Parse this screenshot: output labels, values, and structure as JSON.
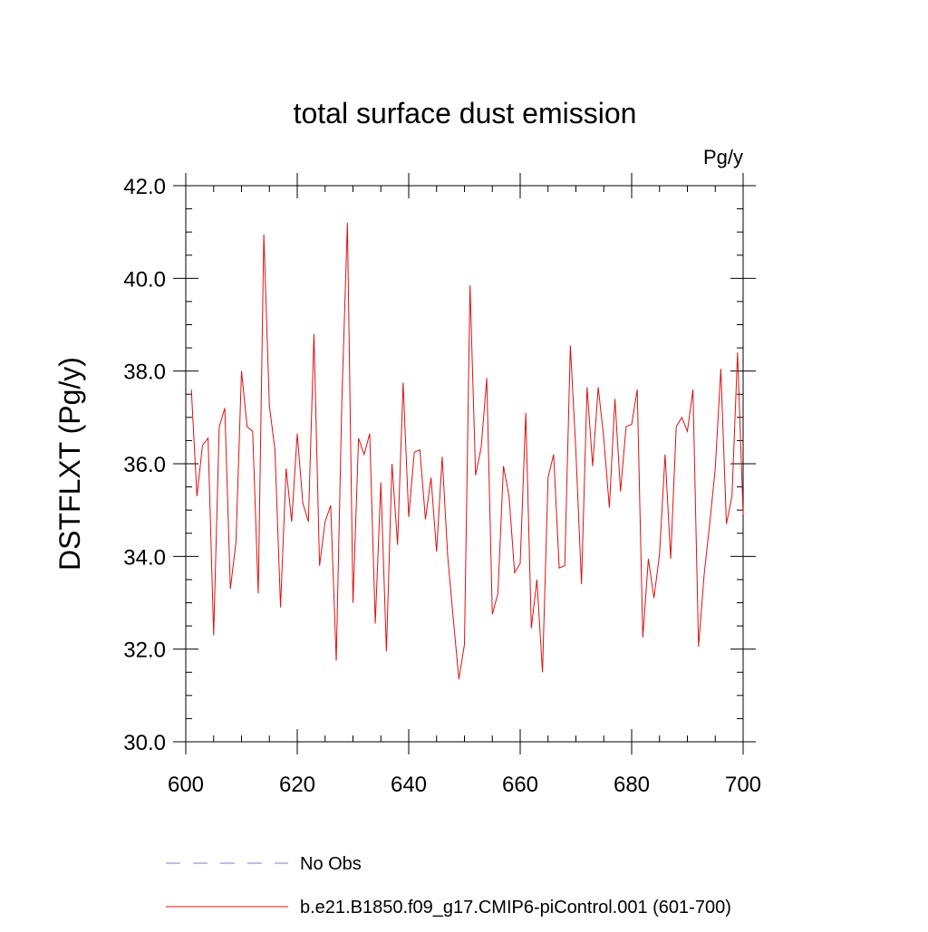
{
  "chart_data": {
    "type": "line",
    "title": "total surface dust emission",
    "units": "Pg/y",
    "ylabel": "DSTFLXT  (Pg/y)",
    "xlabel": "",
    "xlim": [
      600,
      700
    ],
    "ylim": [
      30,
      42
    ],
    "xticks": [
      600,
      620,
      640,
      660,
      680,
      700
    ],
    "xtick_labels": [
      "600",
      "620",
      "640",
      "660",
      "680",
      "700"
    ],
    "yticks": [
      30,
      32,
      34,
      36,
      38,
      40,
      42
    ],
    "ytick_labels": [
      "30.0",
      "32.0",
      "34.0",
      "36.0",
      "38.0",
      "40.0",
      "42.0"
    ],
    "grid": false,
    "legend_position": "bottom",
    "legend": [
      {
        "label": "No Obs",
        "color": "#8878c0",
        "style": "dashed"
      },
      {
        "label": "b.e21.B1850.f09_g17.CMIP6-piControl.001 (601-700)",
        "color": "#e01010",
        "style": "solid"
      }
    ],
    "series": [
      {
        "name": "b.e21.B1850.f09_g17.CMIP6-piControl.001 (601-700)",
        "color": "#e01010",
        "x": [
          601,
          602,
          603,
          604,
          605,
          606,
          607,
          608,
          609,
          610,
          611,
          612,
          613,
          614,
          615,
          616,
          617,
          618,
          619,
          620,
          621,
          622,
          623,
          624,
          625,
          626,
          627,
          628,
          629,
          630,
          631,
          632,
          633,
          634,
          635,
          636,
          637,
          638,
          639,
          640,
          641,
          642,
          643,
          644,
          645,
          646,
          647,
          648,
          649,
          650,
          651,
          652,
          653,
          654,
          655,
          656,
          657,
          658,
          659,
          660,
          661,
          662,
          663,
          664,
          665,
          666,
          667,
          668,
          669,
          670,
          671,
          672,
          673,
          674,
          675,
          676,
          677,
          678,
          679,
          680,
          681,
          682,
          683,
          684,
          685,
          686,
          687,
          688,
          689,
          690,
          691,
          692,
          693,
          694,
          695,
          696,
          697,
          698,
          699,
          700
        ],
        "y": [
          37.6,
          35.3,
          36.4,
          36.55,
          32.3,
          36.8,
          37.2,
          33.3,
          34.3,
          38.0,
          36.8,
          36.7,
          33.2,
          40.95,
          37.25,
          36.3,
          32.9,
          35.9,
          34.75,
          36.65,
          35.15,
          34.75,
          38.8,
          33.8,
          34.75,
          35.1,
          31.75,
          37.35,
          41.2,
          33.0,
          36.55,
          36.2,
          36.65,
          32.55,
          35.6,
          31.95,
          36.0,
          34.25,
          37.75,
          34.85,
          36.25,
          36.3,
          34.8,
          35.7,
          34.1,
          36.15,
          34.0,
          32.65,
          31.35,
          32.1,
          39.85,
          35.75,
          36.35,
          37.85,
          32.75,
          33.2,
          35.95,
          35.3,
          33.65,
          33.85,
          37.1,
          32.45,
          33.5,
          31.5,
          35.7,
          36.2,
          33.75,
          33.8,
          38.55,
          36.25,
          33.4,
          37.65,
          35.95,
          37.65,
          36.55,
          35.05,
          37.4,
          35.4,
          36.8,
          36.85,
          37.6,
          32.25,
          33.95,
          33.1,
          34.05,
          36.2,
          33.95,
          36.8,
          37.0,
          36.7,
          37.6,
          32.05,
          33.6,
          34.7,
          35.9,
          38.05,
          34.7,
          35.3,
          38.4,
          34.9
        ]
      }
    ]
  }
}
